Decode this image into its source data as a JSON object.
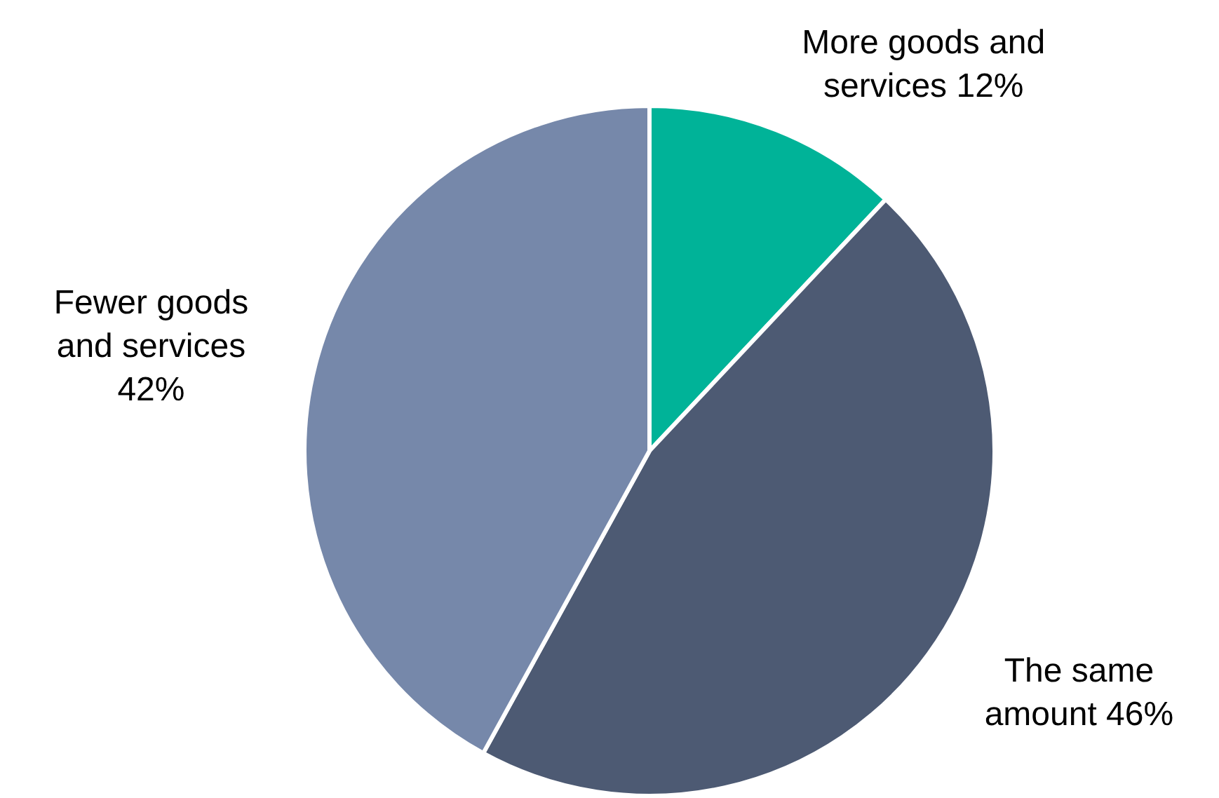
{
  "chart_data": {
    "type": "pie",
    "categories": [
      "More goods and services",
      "The same amount",
      "Fewer goods and services"
    ],
    "values": [
      12,
      46,
      42
    ],
    "value_labels": [
      "12%",
      "46%",
      "42%"
    ],
    "colors": [
      "#00b398",
      "#4d5a73",
      "#7688aa"
    ],
    "legend": false
  }
}
